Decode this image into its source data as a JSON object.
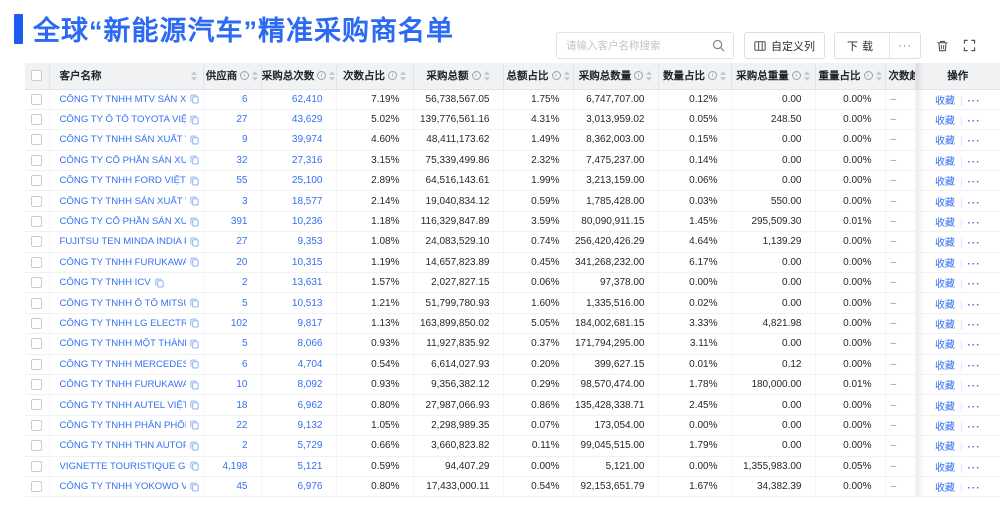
{
  "header": {
    "title": "全球“新能源汽车”精准采购商名单"
  },
  "toolbar": {
    "search_placeholder": "请输入客户名称搜索",
    "customize_button": "自定义列",
    "download_button": "下载",
    "more_button": "···"
  },
  "colors": {
    "accent_blue": "#2b6af2",
    "link_blue": "#3470f2",
    "header_bg": "#f1f2f4"
  },
  "table": {
    "columns": [
      {
        "key": "name",
        "label": "客户名称",
        "info": false,
        "sortable": true
      },
      {
        "key": "supplier",
        "label": "供应商",
        "info": true,
        "sortable": true
      },
      {
        "key": "purchases",
        "label": "采购总次数",
        "info": true,
        "sortable": true
      },
      {
        "key": "count_pct",
        "label": "次数占比",
        "info": true,
        "sortable": true
      },
      {
        "key": "amount",
        "label": "采购总额",
        "info": true,
        "sortable": true
      },
      {
        "key": "amount_pct",
        "label": "总额占比",
        "info": true,
        "sortable": true
      },
      {
        "key": "quantity",
        "label": "采购总数量",
        "info": true,
        "sortable": true
      },
      {
        "key": "qty_pct",
        "label": "数量占比",
        "info": true,
        "sortable": true
      },
      {
        "key": "weight",
        "label": "采购总重量",
        "info": true,
        "sortable": true
      },
      {
        "key": "weight_pct",
        "label": "重量占比",
        "info": true,
        "sortable": true
      },
      {
        "key": "trend",
        "label": "次数趋势",
        "info": false,
        "sortable": false
      },
      {
        "key": "actions",
        "label": "操作",
        "info": false,
        "sortable": false
      }
    ],
    "row_actions": {
      "favorite": "收藏",
      "more": "···"
    },
    "rows": [
      {
        "name": "CÔNG TY TNHH MTV SẢN XUẤ...",
        "supplier": "6",
        "purchases": "62,410",
        "count_pct": "7.19%",
        "amount": "56,738,567.05",
        "amount_pct": "1.75%",
        "quantity": "6,747,707.00",
        "qty_pct": "0.12%",
        "weight": "0.00",
        "weight_pct": "0.00%",
        "trend": "–"
      },
      {
        "name": "CÔNG TY Ô TÔ TOYOTA VIỆT ...",
        "supplier": "27",
        "purchases": "43,629",
        "count_pct": "5.02%",
        "amount": "139,776,561.16",
        "amount_pct": "4.31%",
        "quantity": "3,013,959.02",
        "qty_pct": "0.05%",
        "weight": "248.50",
        "weight_pct": "0.00%",
        "trend": "–"
      },
      {
        "name": "CÔNG TY TNHH SẢN XUẤT VÀ ...",
        "supplier": "9",
        "purchases": "39,974",
        "count_pct": "4.60%",
        "amount": "48,411,173.62",
        "amount_pct": "1.49%",
        "quantity": "8,362,003.00",
        "qty_pct": "0.15%",
        "weight": "0.00",
        "weight_pct": "0.00%",
        "trend": "–"
      },
      {
        "name": "CÔNG TY CỔ PHẦN SẢN XUẤT...",
        "supplier": "32",
        "purchases": "27,316",
        "count_pct": "3.15%",
        "amount": "75,339,499.86",
        "amount_pct": "2.32%",
        "quantity": "7,475,237.00",
        "qty_pct": "0.14%",
        "weight": "0.00",
        "weight_pct": "0.00%",
        "trend": "–"
      },
      {
        "name": "CÔNG TY TNHH FORD VIỆT NAM",
        "supplier": "55",
        "purchases": "25,100",
        "count_pct": "2.89%",
        "amount": "64,516,143.61",
        "amount_pct": "1.99%",
        "quantity": "3,213,159.00",
        "qty_pct": "0.06%",
        "weight": "0.00",
        "weight_pct": "0.00%",
        "trend": "–"
      },
      {
        "name": "CÔNG TY TNHH SẢN XUẤT VÀ ...",
        "supplier": "3",
        "purchases": "18,577",
        "count_pct": "2.14%",
        "amount": "19,040,834.12",
        "amount_pct": "0.59%",
        "quantity": "1,785,428.00",
        "qty_pct": "0.03%",
        "weight": "550.00",
        "weight_pct": "0.00%",
        "trend": "–"
      },
      {
        "name": "CÔNG TY CỔ PHẦN SẢN XUẤT...",
        "supplier": "391",
        "purchases": "10,236",
        "count_pct": "1.18%",
        "amount": "116,329,847.89",
        "amount_pct": "3.59%",
        "quantity": "80,090,911.15",
        "qty_pct": "1.45%",
        "weight": "295,509.30",
        "weight_pct": "0.01%",
        "trend": "–"
      },
      {
        "name": "FUJITSU TEN MINDA INDIA PVT...",
        "supplier": "27",
        "purchases": "9,353",
        "count_pct": "1.08%",
        "amount": "24,083,529.10",
        "amount_pct": "0.74%",
        "quantity": "256,420,426.29",
        "qty_pct": "4.64%",
        "weight": "1,139.29",
        "weight_pct": "0.00%",
        "trend": "–"
      },
      {
        "name": "CÔNG TY TNHH FURUKAWA A...",
        "supplier": "20",
        "purchases": "10,315",
        "count_pct": "1.19%",
        "amount": "14,657,823.89",
        "amount_pct": "0.45%",
        "quantity": "341,268,232.00",
        "qty_pct": "6.17%",
        "weight": "0.00",
        "weight_pct": "0.00%",
        "trend": "–"
      },
      {
        "name": "CÔNG TY TNHH ICV",
        "supplier": "2",
        "purchases": "13,631",
        "count_pct": "1.57%",
        "amount": "2,027,827.15",
        "amount_pct": "0.06%",
        "quantity": "97,378.00",
        "qty_pct": "0.00%",
        "weight": "0.00",
        "weight_pct": "0.00%",
        "trend": "–"
      },
      {
        "name": "CÔNG TY TNHH Ô TÔ MITSUBI...",
        "supplier": "5",
        "purchases": "10,513",
        "count_pct": "1.21%",
        "amount": "51,799,780.93",
        "amount_pct": "1.60%",
        "quantity": "1,335,516.00",
        "qty_pct": "0.02%",
        "weight": "0.00",
        "weight_pct": "0.00%",
        "trend": "–"
      },
      {
        "name": "CÔNG TY TNHH LG ELECTRON...",
        "supplier": "102",
        "purchases": "9,817",
        "count_pct": "1.13%",
        "amount": "163,899,850.02",
        "amount_pct": "5.05%",
        "quantity": "184,002,681.15",
        "qty_pct": "3.33%",
        "weight": "4,821.98",
        "weight_pct": "0.00%",
        "trend": "–"
      },
      {
        "name": "CÔNG TY TNHH MỘT THÀNH V...",
        "supplier": "5",
        "purchases": "8,066",
        "count_pct": "0.93%",
        "amount": "11,927,835.92",
        "amount_pct": "0.37%",
        "quantity": "171,794,295.00",
        "qty_pct": "3.11%",
        "weight": "0.00",
        "weight_pct": "0.00%",
        "trend": "–"
      },
      {
        "name": "CÔNG TY TNHH MERCEDES–B...",
        "supplier": "6",
        "purchases": "4,704",
        "count_pct": "0.54%",
        "amount": "6,614,027.93",
        "amount_pct": "0.20%",
        "quantity": "399,627.15",
        "qty_pct": "0.01%",
        "weight": "0.12",
        "weight_pct": "0.00%",
        "trend": "–"
      },
      {
        "name": "CÔNG TY TNHH FURUKAWA A...",
        "supplier": "10",
        "purchases": "8,092",
        "count_pct": "0.93%",
        "amount": "9,356,382.12",
        "amount_pct": "0.29%",
        "quantity": "98,570,474.00",
        "qty_pct": "1.78%",
        "weight": "180,000.00",
        "weight_pct": "0.01%",
        "trend": "–"
      },
      {
        "name": "CÔNG TY TNHH AUTEL VIỆT N...",
        "supplier": "18",
        "purchases": "6,962",
        "count_pct": "0.80%",
        "amount": "27,987,066.93",
        "amount_pct": "0.86%",
        "quantity": "135,428,338.71",
        "qty_pct": "2.45%",
        "weight": "0.00",
        "weight_pct": "0.00%",
        "trend": "–"
      },
      {
        "name": "CÔNG TY TNHH PHÂN PHỐI T...",
        "supplier": "22",
        "purchases": "9,132",
        "count_pct": "1.05%",
        "amount": "2,298,989.35",
        "amount_pct": "0.07%",
        "quantity": "173,054.00",
        "qty_pct": "0.00%",
        "weight": "0.00",
        "weight_pct": "0.00%",
        "trend": "–"
      },
      {
        "name": "CÔNG TY TNHH THN AUTOPAR...",
        "supplier": "2",
        "purchases": "5,729",
        "count_pct": "0.66%",
        "amount": "3,660,823.82",
        "amount_pct": "0.11%",
        "quantity": "99,045,515.00",
        "qty_pct": "1.79%",
        "weight": "0.00",
        "weight_pct": "0.00%",
        "trend": "–"
      },
      {
        "name": "VIGNETTE TOURISTIQUE G UNI...",
        "supplier": "4,198",
        "purchases": "5,121",
        "count_pct": "0.59%",
        "amount": "94,407.29",
        "amount_pct": "0.00%",
        "quantity": "5,121.00",
        "qty_pct": "0.00%",
        "weight": "1,355,983.00",
        "weight_pct": "0.05%",
        "trend": "–"
      },
      {
        "name": "CÔNG TY TNHH YOKOWO VIỆT...",
        "supplier": "45",
        "purchases": "6,976",
        "count_pct": "0.80%",
        "amount": "17,433,000.11",
        "amount_pct": "0.54%",
        "quantity": "92,153,651.79",
        "qty_pct": "1.67%",
        "weight": "34,382.39",
        "weight_pct": "0.00%",
        "trend": "–"
      }
    ]
  }
}
